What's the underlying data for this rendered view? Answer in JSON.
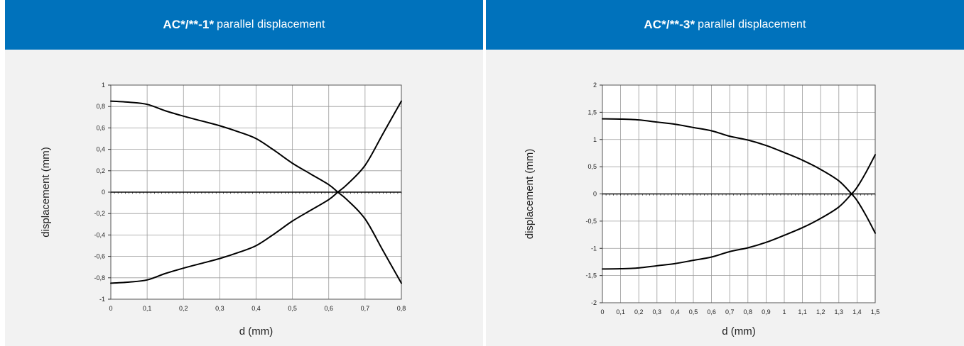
{
  "chart_data": [
    {
      "type": "line",
      "title_main": "AC*/**-1*",
      "title_rest": "parallel displacement",
      "xlabel": "d (mm)",
      "ylabel": "displacement (mm)",
      "xlim": [
        0,
        0.8
      ],
      "ylim": [
        -1,
        1
      ],
      "x_ticks": [
        0,
        0.1,
        0.2,
        0.3,
        0.4,
        0.5,
        0.6,
        0.7,
        0.8
      ],
      "x_tick_labels": [
        "0",
        "0,1",
        "0,2",
        "0,3",
        "0,4",
        "0,5",
        "0,6",
        "0,7",
        "0,8"
      ],
      "y_ticks": [
        1,
        0.8,
        0.6,
        0.4,
        0.2,
        0,
        -0.2,
        -0.4,
        -0.6,
        -0.8,
        -1
      ],
      "y_tick_labels": [
        "1",
        "0,8",
        "0,6",
        "0,4",
        "0,2",
        "0",
        "-0,2",
        "-0,4",
        "-0,6",
        "-0,8",
        "-1"
      ],
      "x_minor_step": 0.01,
      "grid": true,
      "series": [
        {
          "x": [
            0,
            0.05,
            0.1,
            0.15,
            0.2,
            0.25,
            0.3,
            0.35,
            0.4,
            0.45,
            0.5,
            0.55,
            0.6,
            0.625,
            0.65,
            0.7,
            0.75,
            0.8
          ],
          "y": [
            0.85,
            0.84,
            0.82,
            0.76,
            0.71,
            0.665,
            0.62,
            0.565,
            0.5,
            0.39,
            0.27,
            0.17,
            0.07,
            0.0,
            -0.07,
            -0.25,
            -0.55,
            -0.85
          ]
        },
        {
          "x": [
            0,
            0.05,
            0.1,
            0.15,
            0.2,
            0.25,
            0.3,
            0.35,
            0.4,
            0.45,
            0.5,
            0.55,
            0.6,
            0.625,
            0.65,
            0.7,
            0.75,
            0.8
          ],
          "y": [
            -0.85,
            -0.84,
            -0.82,
            -0.76,
            -0.71,
            -0.665,
            -0.62,
            -0.565,
            -0.5,
            -0.39,
            -0.27,
            -0.17,
            -0.07,
            0.0,
            0.07,
            0.25,
            0.55,
            0.85
          ]
        }
      ]
    },
    {
      "type": "line",
      "title_main": "AC*/**-3*",
      "title_rest": "parallel displacement",
      "xlabel": "d (mm)",
      "ylabel": "displacement (mm)",
      "xlim": [
        0,
        1.5
      ],
      "ylim": [
        -2,
        2
      ],
      "x_ticks": [
        0,
        0.1,
        0.2,
        0.3,
        0.4,
        0.5,
        0.6,
        0.7,
        0.8,
        0.9,
        1,
        1.1,
        1.2,
        1.3,
        1.4,
        1.5
      ],
      "x_tick_labels": [
        "0",
        "0,1",
        "0,2",
        "0,3",
        "0,4",
        "0,5",
        "0,6",
        "0,7",
        "0,8",
        "0,9",
        "1",
        "1,1",
        "1,2",
        "1,3",
        "1,4",
        "1,5"
      ],
      "y_ticks": [
        2,
        1.5,
        1,
        0.5,
        0,
        -0.5,
        -1,
        -1.5,
        -2
      ],
      "y_tick_labels": [
        "2",
        "1,5",
        "1",
        "0,5",
        "0",
        "-0,5",
        "-1",
        "-1,5",
        "-2"
      ],
      "x_minor_step": 0.02,
      "grid": true,
      "series": [
        {
          "x": [
            0,
            0.1,
            0.2,
            0.3,
            0.4,
            0.5,
            0.6,
            0.7,
            0.8,
            0.9,
            1,
            1.1,
            1.2,
            1.3,
            1.37,
            1.4,
            1.45,
            1.5
          ],
          "y": [
            1.38,
            1.375,
            1.36,
            1.32,
            1.28,
            1.22,
            1.16,
            1.06,
            0.99,
            0.89,
            0.76,
            0.62,
            0.45,
            0.24,
            0.0,
            -0.12,
            -0.4,
            -0.72
          ]
        },
        {
          "x": [
            0,
            0.1,
            0.2,
            0.3,
            0.4,
            0.5,
            0.6,
            0.7,
            0.8,
            0.9,
            1,
            1.1,
            1.2,
            1.3,
            1.37,
            1.4,
            1.45,
            1.5
          ],
          "y": [
            -1.38,
            -1.375,
            -1.36,
            -1.32,
            -1.28,
            -1.22,
            -1.16,
            -1.06,
            -0.99,
            -0.89,
            -0.76,
            -0.62,
            -0.45,
            -0.24,
            0.0,
            0.12,
            0.4,
            0.72
          ]
        }
      ]
    }
  ]
}
